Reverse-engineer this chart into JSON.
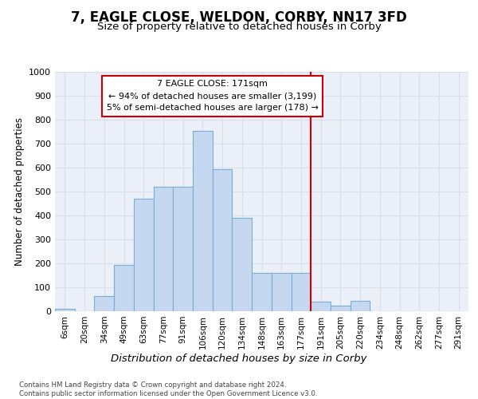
{
  "title": "7, EAGLE CLOSE, WELDON, CORBY, NN17 3FD",
  "subtitle": "Size of property relative to detached houses in Corby",
  "xlabel": "Distribution of detached houses by size in Corby",
  "ylabel": "Number of detached properties",
  "categories": [
    "6sqm",
    "20sqm",
    "34sqm",
    "49sqm",
    "63sqm",
    "77sqm",
    "91sqm",
    "106sqm",
    "120sqm",
    "134sqm",
    "148sqm",
    "163sqm",
    "177sqm",
    "191sqm",
    "205sqm",
    "220sqm",
    "234sqm",
    "248sqm",
    "262sqm",
    "277sqm",
    "291sqm"
  ],
  "values": [
    10,
    0,
    65,
    195,
    470,
    520,
    520,
    755,
    595,
    390,
    160,
    160,
    160,
    40,
    25,
    45,
    0,
    0,
    0,
    0,
    0
  ],
  "bar_color": "#c5d8f0",
  "bar_edge_color": "#7aadd4",
  "vline_color": "#cc0000",
  "vline_position": 12.5,
  "annotation_text": "7 EAGLE CLOSE: 171sqm\n← 94% of detached houses are smaller (3,199)\n5% of semi-detached houses are larger (178) →",
  "annotation_box_color": "#cc0000",
  "bg_color": "#eaeff8",
  "grid_color": "#d8dde8",
  "footer": "Contains HM Land Registry data © Crown copyright and database right 2024.\nContains public sector information licensed under the Open Government Licence v3.0.",
  "ylim_max": 1000,
  "yticks": [
    0,
    100,
    200,
    300,
    400,
    500,
    600,
    700,
    800,
    900,
    1000
  ]
}
